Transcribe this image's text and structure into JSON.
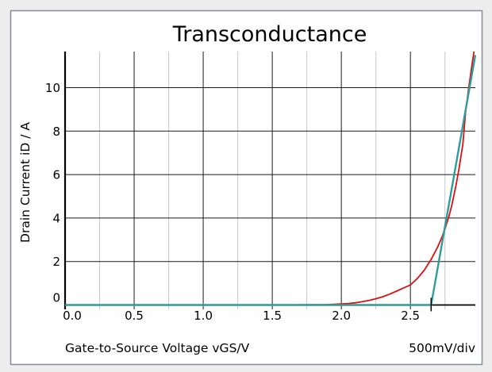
{
  "window": {
    "background_color": "#ededed",
    "panel_background": "#ffffff",
    "panel_border_color": "#848b95"
  },
  "chart_data": {
    "type": "line",
    "title": "Transconductance",
    "xlabel": "Gate-to-Source Voltage  vGS/V",
    "ylabel": "Drain Current  iD / A",
    "x_scale_note": "500mV/div",
    "xlim": [
      0,
      2.97
    ],
    "ylim": [
      0,
      11.66
    ],
    "x_ticks_major": [
      0,
      0.5,
      1.0,
      1.5,
      2.0,
      2.5
    ],
    "x_tick_labels": [
      "0.0",
      "0.5",
      "1.0",
      "1.5",
      "2.0",
      "2.5"
    ],
    "x_ticks_minor": [
      0.25,
      0.75,
      1.25,
      1.75,
      2.25,
      2.75
    ],
    "y_ticks": [
      0,
      2,
      4,
      6,
      8,
      10
    ],
    "y_tick_labels": [
      "0",
      "2",
      "4",
      "6",
      "8",
      "10"
    ],
    "grid": {
      "major_color": "#1a1a1a",
      "minor_color": "#c8c8c8",
      "axis_color": "#000000",
      "minor_horizontal": false
    },
    "legend": "none",
    "series": [
      {
        "name": "device-transfer-curve",
        "color": "#dc1010",
        "stroke_width": 1.8,
        "points": [
          [
            0,
            0
          ],
          [
            1.5,
            0
          ],
          [
            1.8,
            0.01
          ],
          [
            1.9,
            0.02
          ],
          [
            2.0,
            0.05
          ],
          [
            2.05,
            0.07
          ],
          [
            2.1,
            0.1
          ],
          [
            2.15,
            0.15
          ],
          [
            2.2,
            0.21
          ],
          [
            2.25,
            0.29
          ],
          [
            2.3,
            0.38
          ],
          [
            2.35,
            0.5
          ],
          [
            2.4,
            0.64
          ],
          [
            2.45,
            0.78
          ],
          [
            2.5,
            0.92
          ],
          [
            2.55,
            1.22
          ],
          [
            2.6,
            1.6
          ],
          [
            2.65,
            2.1
          ],
          [
            2.7,
            2.7
          ],
          [
            2.73,
            3.15
          ],
          [
            2.75,
            3.5
          ],
          [
            2.78,
            4.1
          ],
          [
            2.8,
            4.6
          ],
          [
            2.83,
            5.5
          ],
          [
            2.85,
            6.2
          ],
          [
            2.88,
            7.4
          ],
          [
            2.9,
            8.9
          ],
          [
            2.91,
            9.4
          ],
          [
            2.92,
            9.9
          ],
          [
            2.94,
            10.8
          ],
          [
            2.96,
            11.66
          ]
        ]
      },
      {
        "name": "piecewise-linear-approximation",
        "color": "#2f9c9c",
        "stroke_width": 2.4,
        "points": [
          [
            0,
            0
          ],
          [
            2.65,
            0
          ],
          [
            2.97,
            11.5
          ]
        ]
      }
    ],
    "annotations": [
      {
        "name": "breakpoint-tick",
        "x": 2.65,
        "y": 0,
        "color": "#000000"
      }
    ]
  }
}
